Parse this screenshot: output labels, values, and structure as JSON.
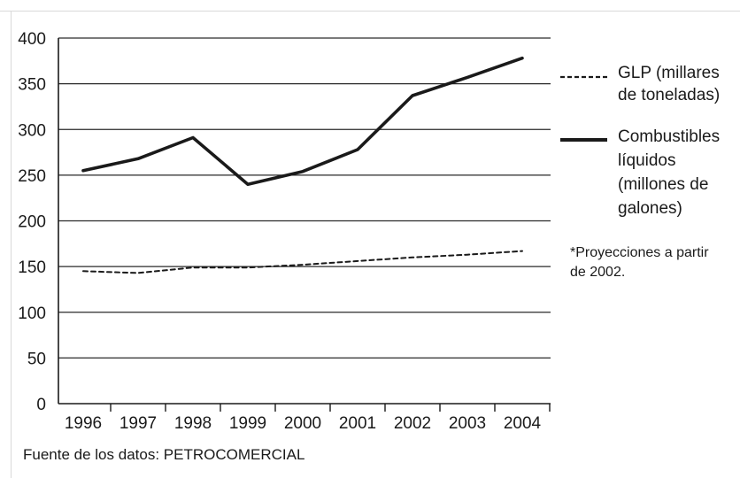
{
  "chart_data": {
    "type": "line",
    "title": "",
    "xlabel": "",
    "ylabel": "",
    "x": [
      "1996",
      "1997",
      "1998",
      "1999",
      "2000",
      "2001",
      "2002",
      "2003",
      "2004"
    ],
    "ylim": [
      0,
      400
    ],
    "yticks": [
      0,
      50,
      100,
      150,
      200,
      250,
      300,
      350,
      400
    ],
    "grid": "horizontal",
    "legend_position": "right",
    "series": [
      {
        "name": "GLP (millares de toneladas)",
        "name_lines": [
          "GLP (millares",
          "de toneladas)"
        ],
        "style": "dashed",
        "values": [
          145,
          143,
          149,
          149,
          152,
          156,
          160,
          163,
          167
        ]
      },
      {
        "name": "Combustibles líquidos (millones de galones)",
        "name_lines": [
          "Combustibles",
          "líquidos",
          "(millones de",
          "galones)"
        ],
        "style": "solid",
        "values": [
          255,
          268,
          291,
          240,
          254,
          278,
          337,
          357,
          378
        ]
      }
    ],
    "note_lines": [
      "*Proyecciones a partir",
      "de 2002."
    ],
    "source": "Fuente de los datos: PETROCOMERCIAL"
  },
  "colors": {
    "line": "#1a1a1a",
    "grid": "#2a2a2a",
    "background": "#ffffff"
  }
}
